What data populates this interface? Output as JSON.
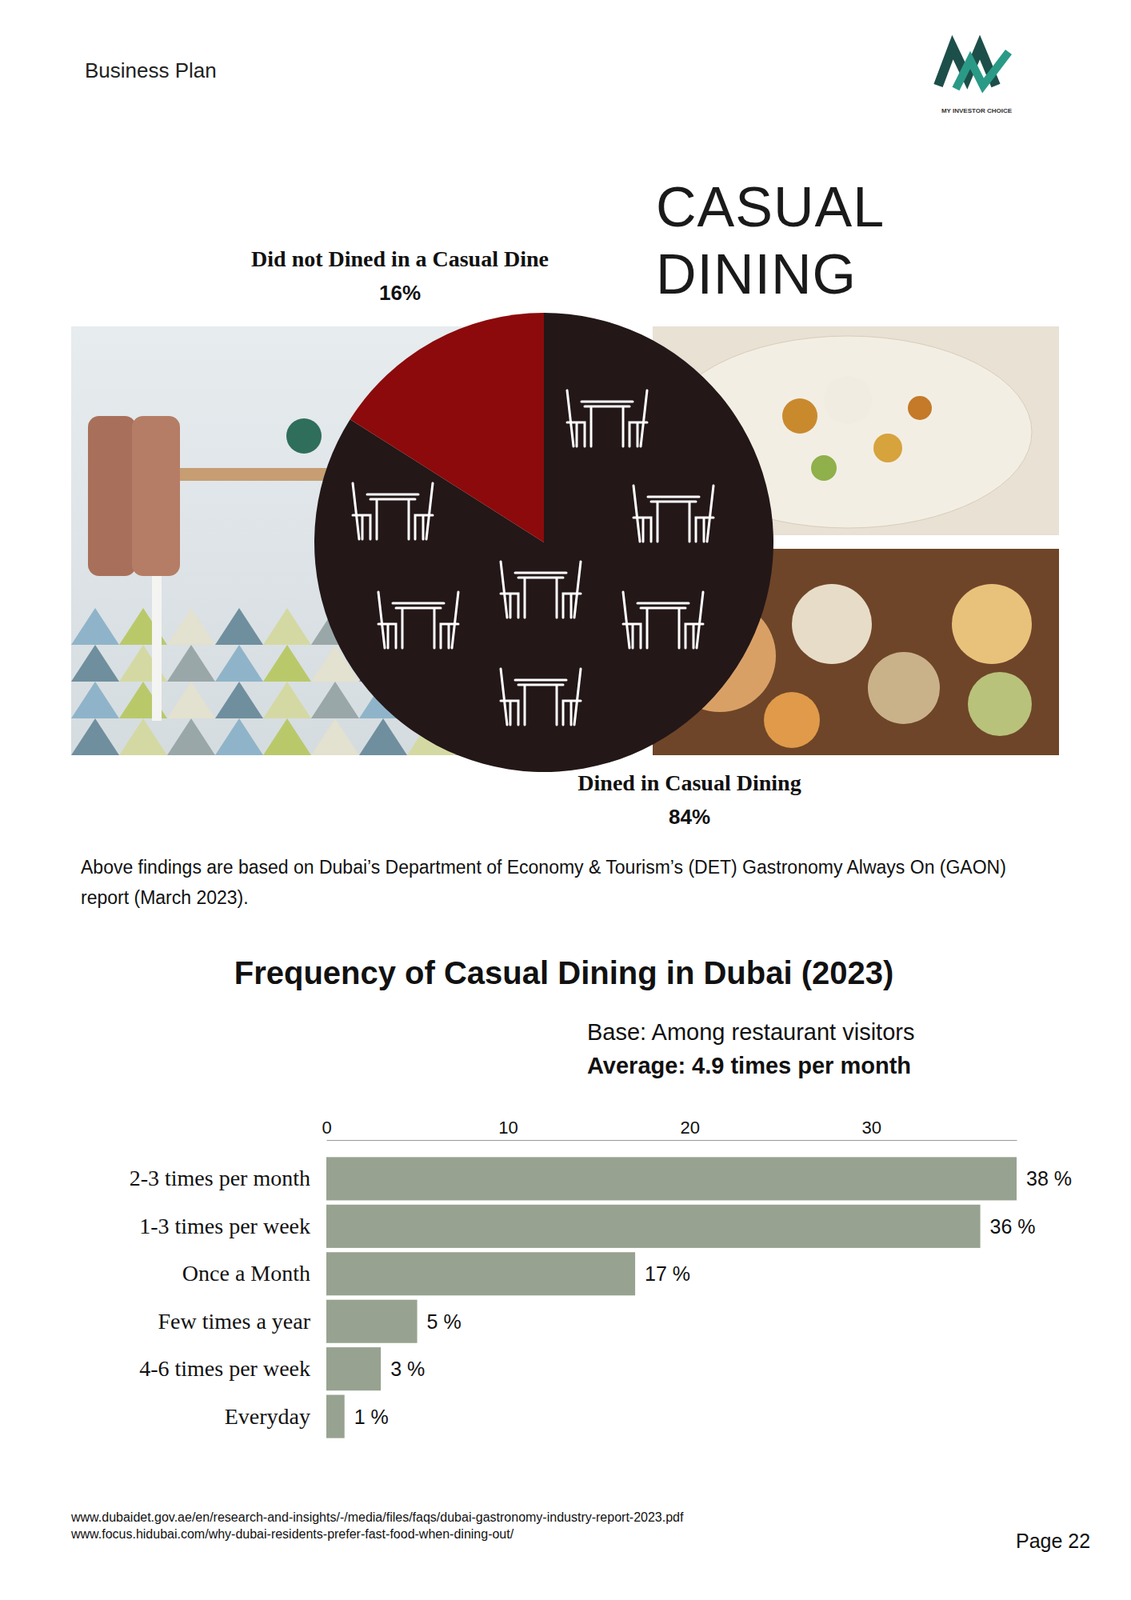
{
  "page": {
    "header": "Business Plan",
    "logo_text": "MY INVESTOR CHOICE",
    "heading": "CASUAL DINING",
    "note": "Above findings are based on Dubai’s Department of Economy & Tourism’s (DET) Gastronomy Always On (GAON) report (March 2023).",
    "sources": [
      "www.dubaidet.gov.ae/en/research-and-insights/-/media/files/faqs/dubai-gastronomy-industry-report-2023.pdf",
      "www.focus.hidubai.com/why-dubai-residents-prefer-fast-food-when-dining-out/"
    ],
    "page_number": "Page 22"
  },
  "chart_data": [
    {
      "type": "pie",
      "categories": [
        "Dined in Casual Dining",
        "Did not Dined in a Casual Dine"
      ],
      "values": [
        84,
        16
      ],
      "value_labels": [
        "84%",
        "16%"
      ],
      "colors": [
        "#231718",
        "#8c0a0b"
      ],
      "data_labels": true
    },
    {
      "type": "bar",
      "orientation": "horizontal",
      "title": "Frequency of Casual Dining in Dubai (2023)",
      "subtitle": "Base: Among restaurant visitors",
      "annotation": "Average: 4.9 times per month",
      "categories": [
        "2-3 times per month",
        "1-3 times per week",
        "Once a Month",
        "Few times a year",
        "4-6 times per week",
        "Everyday"
      ],
      "values": [
        38,
        36,
        17,
        5,
        3,
        1
      ],
      "value_labels": [
        "38 %",
        "36 %",
        "17 %",
        "5 %",
        "3 %",
        "1 %"
      ],
      "color": "#98a290",
      "xlim": [
        0,
        38
      ],
      "xticks": [
        0,
        10,
        20,
        30
      ],
      "data_labels": true,
      "grid": false
    }
  ]
}
